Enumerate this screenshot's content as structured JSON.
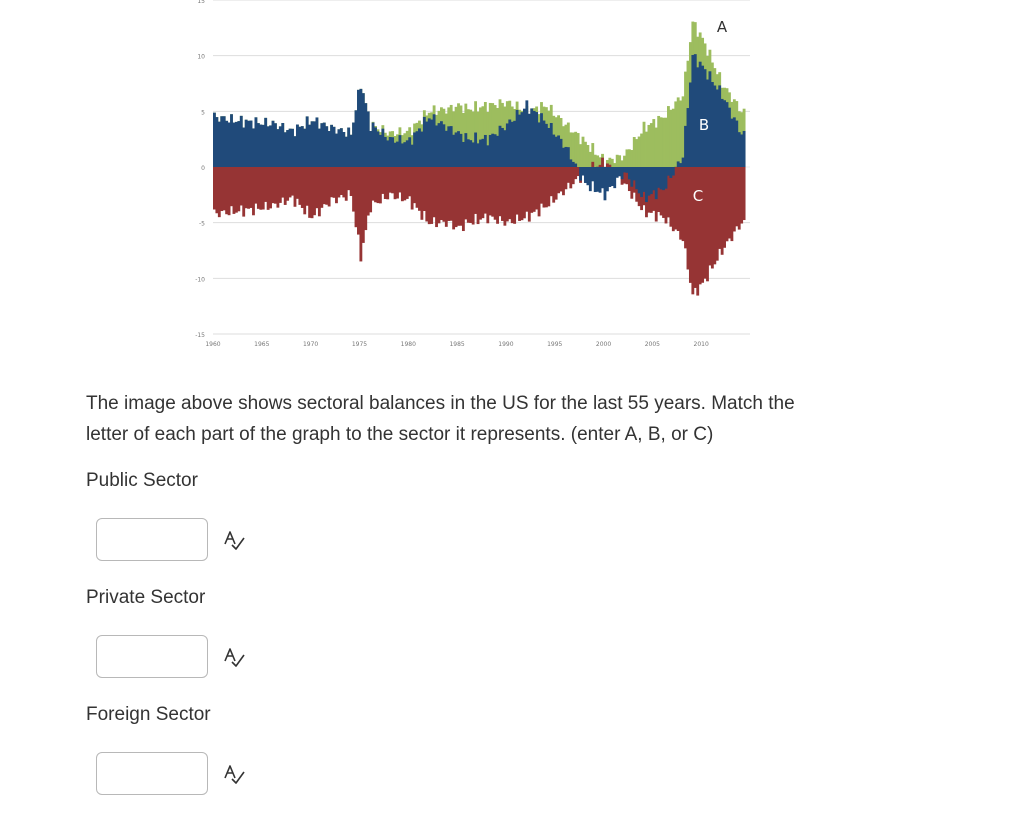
{
  "chart_data": {
    "type": "area",
    "x_ticks": [
      "1960",
      "1965",
      "1970",
      "1975",
      "1980",
      "1985",
      "1990",
      "1995",
      "2000",
      "2005",
      "2010"
    ],
    "y_ticks": [
      "15",
      "10",
      "5",
      "0",
      "-5",
      "-10",
      "-15"
    ],
    "ylim": [
      -15,
      15
    ],
    "xlim": [
      1960,
      2015
    ],
    "annotations": [
      "A",
      "B",
      "C"
    ],
    "series": [
      {
        "label_letter": "A",
        "color": "#9dbd5e",
        "x": [
          1960,
          1962,
          1964,
          1966,
          1968,
          1970,
          1972,
          1974,
          1975,
          1976,
          1978,
          1980,
          1982,
          1984,
          1985,
          1986,
          1988,
          1990,
          1992,
          1994,
          1996,
          1998,
          2000,
          2002,
          2004,
          2006,
          2008,
          2009,
          2010,
          2012,
          2014
        ],
        "y": [
          4.5,
          4.2,
          4.0,
          3.9,
          3.2,
          4.2,
          3.5,
          3.0,
          7.5,
          3.8,
          3.0,
          3.2,
          5.0,
          5.2,
          5.5,
          5.2,
          5.5,
          5.8,
          5.0,
          5.5,
          3.8,
          2.2,
          0.5,
          1.0,
          3.5,
          4.5,
          6.5,
          13.0,
          11.5,
          7.5,
          5.0
        ]
      },
      {
        "label_letter": "B",
        "color": "#204a7a",
        "x": [
          1960,
          1962,
          1964,
          1966,
          1968,
          1970,
          1972,
          1974,
          1975,
          1976,
          1978,
          1980,
          1982,
          1984,
          1985,
          1986,
          1988,
          1990,
          1992,
          1994,
          1996,
          1998,
          2000,
          2002,
          2004,
          2006,
          2008,
          2009,
          2010,
          2012,
          2014
        ],
        "y": [
          4.5,
          4.2,
          4.0,
          3.9,
          3.2,
          4.2,
          3.5,
          3.0,
          7.5,
          3.8,
          2.5,
          2.3,
          4.5,
          3.5,
          3.0,
          2.5,
          2.5,
          3.8,
          5.5,
          4.0,
          1.8,
          -1.5,
          -2.5,
          -0.5,
          -2.8,
          -2.0,
          1.0,
          10.0,
          9.0,
          6.5,
          3.0
        ]
      },
      {
        "label_letter": "C",
        "color": "#963434",
        "x": [
          1960,
          1962,
          1964,
          1966,
          1968,
          1970,
          1972,
          1974,
          1975,
          1976,
          1978,
          1980,
          1982,
          1984,
          1985,
          1986,
          1988,
          1990,
          1992,
          1994,
          1996,
          1998,
          2000,
          2002,
          2004,
          2006,
          2008,
          2009,
          2010,
          2012,
          2014
        ],
        "y": [
          -4.2,
          -4.0,
          -3.8,
          -3.5,
          -2.8,
          -4.5,
          -3.0,
          -2.5,
          -8.0,
          -3.5,
          -2.5,
          -3.0,
          -5.0,
          -5.0,
          -5.5,
          -5.0,
          -4.5,
          -5.0,
          -4.5,
          -3.5,
          -2.0,
          -0.5,
          0.5,
          -1.5,
          -4.0,
          -4.5,
          -6.5,
          -11.5,
          -10.5,
          -7.5,
          -5.0
        ]
      }
    ]
  },
  "prompt": {
    "line1": "The image above shows sectoral balances in the US for the last 55 years.  Match the",
    "line2": "letter of each part of the graph to the sector it represents. (enter A, B, or C)"
  },
  "questions": [
    {
      "label": "Public Sector",
      "value": ""
    },
    {
      "label": "Private Sector",
      "value": ""
    },
    {
      "label": "Foreign Sector",
      "value": ""
    }
  ],
  "icons": {
    "spellcheck": "spellcheck-icon"
  }
}
